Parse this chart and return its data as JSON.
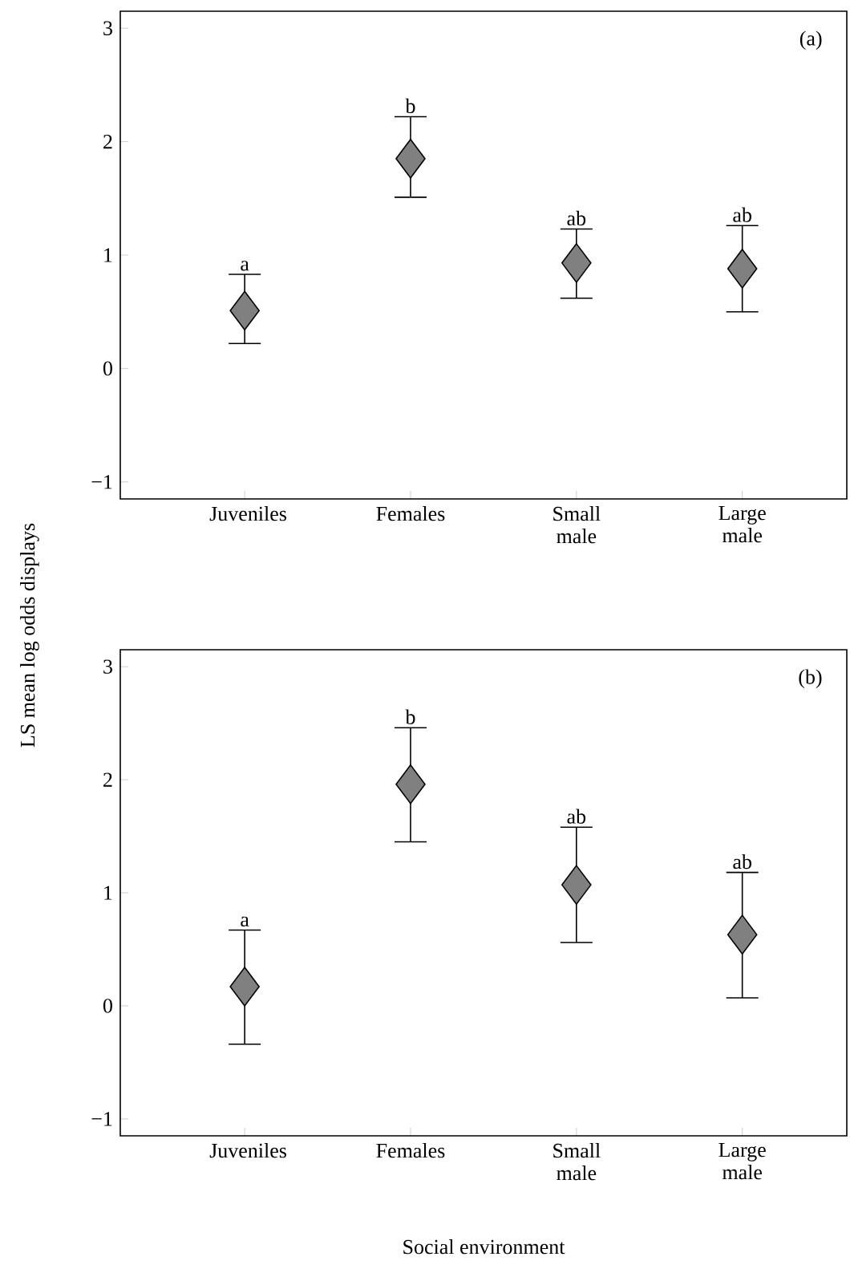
{
  "chart_data": [
    {
      "type": "scatter",
      "categories": [
        "Juveniles",
        "Females",
        "Small male",
        "Large male"
      ],
      "ylabel": "LS mean log odds displays",
      "marker": "diamond",
      "ylim": [
        -1.15,
        3.15
      ],
      "yticks": [
        {
          "value": -1,
          "label": "−1"
        },
        0,
        1,
        2,
        3
      ],
      "series": [
        {
          "color": "#808080",
          "values": [
            0.51,
            1.85,
            0.93,
            0.88
          ],
          "errors": [
            [
              0.22,
              0.83
            ],
            [
              1.51,
              2.22
            ],
            [
              0.62,
              1.23
            ],
            [
              0.5,
              1.26
            ]
          ]
        }
      ],
      "annotations": [
        "(a)",
        {
          "text": "a",
          "x": "Juveniles",
          "y": 0.83
        },
        {
          "text": "b",
          "x": "Females",
          "y": 2.22
        },
        {
          "text": "ab",
          "x": "Small male",
          "y": 1.23
        },
        {
          "text": "ab",
          "x": "Large male",
          "y": 1.26
        }
      ]
    },
    {
      "type": "scatter",
      "categories": [
        "Juveniles",
        "Females",
        "Small male",
        "Large male"
      ],
      "xlabel": "Social environment",
      "marker": "diamond",
      "ylim": [
        -1.15,
        3.15
      ],
      "yticks": [
        {
          "value": -1,
          "label": "−1"
        },
        0,
        1,
        2,
        3
      ],
      "series": [
        {
          "color": "#808080",
          "values": [
            0.17,
            1.96,
            1.07,
            0.63
          ],
          "errors": [
            [
              -0.34,
              0.67
            ],
            [
              1.45,
              2.46
            ],
            [
              0.56,
              1.58
            ],
            [
              0.07,
              1.18
            ]
          ]
        }
      ],
      "annotations": [
        "(b)",
        {
          "text": "a",
          "x": "Juveniles",
          "y": 0.67
        },
        {
          "text": "b",
          "x": "Females",
          "y": 2.46
        },
        {
          "text": "ab",
          "x": "Small male",
          "y": 1.58
        },
        {
          "text": "ab",
          "x": "Large male",
          "y": 1.18
        }
      ]
    }
  ]
}
